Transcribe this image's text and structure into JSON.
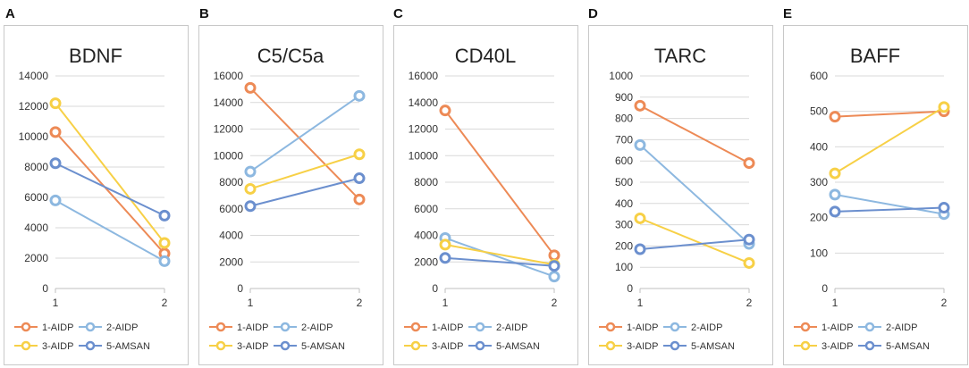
{
  "chart_data": [
    {
      "panel": "A",
      "type": "line",
      "title": "BDNF",
      "x": [
        1,
        2
      ],
      "x_tick_labels": [
        "1",
        "2"
      ],
      "ylim": [
        0,
        14000
      ],
      "y_ticks": [
        0,
        2000,
        4000,
        6000,
        8000,
        10000,
        12000,
        14000
      ],
      "grid": "horizontal",
      "legend_position": "bottom",
      "series": [
        {
          "name": "1-AIDP",
          "color": "#ED8A56",
          "values": [
            10300,
            2300
          ]
        },
        {
          "name": "2-AIDP",
          "color": "#8DB8E0",
          "values": [
            5800,
            1800
          ]
        },
        {
          "name": "3-AIDP",
          "color": "#F7D046",
          "values": [
            12200,
            3000
          ]
        },
        {
          "name": "5-AMSAN",
          "color": "#6B8FCE",
          "values": [
            8250,
            4800
          ]
        }
      ]
    },
    {
      "panel": "B",
      "type": "line",
      "title": "C5/C5a",
      "x": [
        1,
        2
      ],
      "x_tick_labels": [
        "1",
        "2"
      ],
      "ylim": [
        0,
        16000
      ],
      "y_ticks": [
        0,
        2000,
        4000,
        6000,
        8000,
        10000,
        12000,
        14000,
        16000
      ],
      "grid": "horizontal",
      "legend_position": "bottom",
      "series": [
        {
          "name": "1-AIDP",
          "color": "#ED8A56",
          "values": [
            15100,
            6700
          ]
        },
        {
          "name": "2-AIDP",
          "color": "#8DB8E0",
          "values": [
            8800,
            14500
          ]
        },
        {
          "name": "3-AIDP",
          "color": "#F7D046",
          "values": [
            7500,
            10100
          ]
        },
        {
          "name": "5-AMSAN",
          "color": "#6B8FCE",
          "values": [
            6200,
            8300
          ]
        }
      ]
    },
    {
      "panel": "C",
      "type": "line",
      "title": "CD40L",
      "x": [
        1,
        2
      ],
      "x_tick_labels": [
        "1",
        "2"
      ],
      "ylim": [
        0,
        16000
      ],
      "y_ticks": [
        0,
        2000,
        4000,
        6000,
        8000,
        10000,
        12000,
        14000,
        16000
      ],
      "grid": "horizontal",
      "legend_position": "bottom",
      "series": [
        {
          "name": "1-AIDP",
          "color": "#ED8A56",
          "values": [
            13400,
            2500
          ]
        },
        {
          "name": "2-AIDP",
          "color": "#8DB8E0",
          "values": [
            3800,
            900
          ]
        },
        {
          "name": "3-AIDP",
          "color": "#F7D046",
          "values": [
            3300,
            1800
          ]
        },
        {
          "name": "5-AMSAN",
          "color": "#6B8FCE",
          "values": [
            2300,
            1700
          ]
        }
      ]
    },
    {
      "panel": "D",
      "type": "line",
      "title": "TARC",
      "x": [
        1,
        2
      ],
      "x_tick_labels": [
        "1",
        "2"
      ],
      "ylim": [
        0,
        1000
      ],
      "y_ticks": [
        0,
        100,
        200,
        300,
        400,
        500,
        600,
        700,
        800,
        900,
        1000
      ],
      "grid": "horizontal",
      "legend_position": "bottom",
      "series": [
        {
          "name": "1-AIDP",
          "color": "#ED8A56",
          "values": [
            860,
            590
          ]
        },
        {
          "name": "2-AIDP",
          "color": "#8DB8E0",
          "values": [
            675,
            210
          ]
        },
        {
          "name": "3-AIDP",
          "color": "#F7D046",
          "values": [
            330,
            120
          ]
        },
        {
          "name": "5-AMSAN",
          "color": "#6B8FCE",
          "values": [
            185,
            230
          ]
        }
      ]
    },
    {
      "panel": "E",
      "type": "line",
      "title": "BAFF",
      "x": [
        1,
        2
      ],
      "x_tick_labels": [
        "1",
        "2"
      ],
      "ylim": [
        0,
        600
      ],
      "y_ticks": [
        0,
        100,
        200,
        300,
        400,
        500,
        600
      ],
      "grid": "horizontal",
      "legend_position": "bottom",
      "series": [
        {
          "name": "1-AIDP",
          "color": "#ED8A56",
          "values": [
            485,
            500
          ]
        },
        {
          "name": "2-AIDP",
          "color": "#8DB8E0",
          "values": [
            265,
            210
          ]
        },
        {
          "name": "3-AIDP",
          "color": "#F7D046",
          "values": [
            325,
            512
          ]
        },
        {
          "name": "5-AMSAN",
          "color": "#6B8FCE",
          "values": [
            217,
            228
          ]
        }
      ]
    }
  ]
}
